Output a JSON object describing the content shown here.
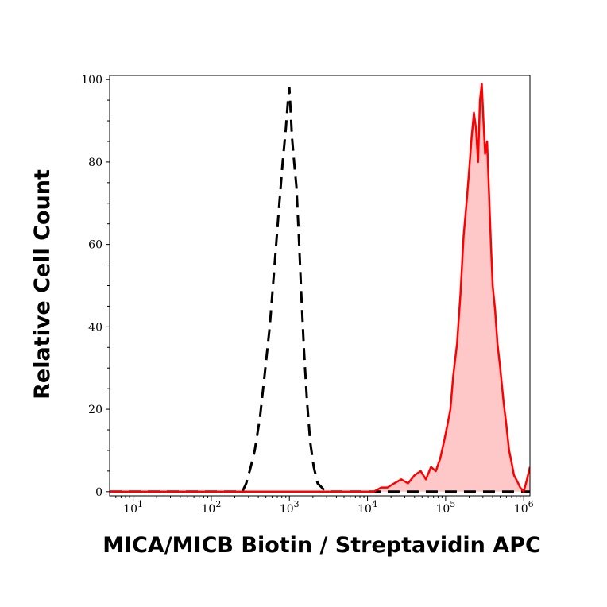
{
  "chart_data": {
    "type": "area",
    "title": "",
    "xlabel": "MICA/MICB Biotin / Streptavidin APC",
    "ylabel": "Relative Cell Count",
    "x_scale": "log",
    "xlim": [
      5,
      1200000
    ],
    "ylim": [
      -1,
      101
    ],
    "grid": false,
    "legend": "none",
    "y_ticks": [
      {
        "value": 0,
        "label": "0"
      },
      {
        "value": 20,
        "label": "20"
      },
      {
        "value": 40,
        "label": "40"
      },
      {
        "value": 60,
        "label": "60"
      },
      {
        "value": 80,
        "label": "80"
      },
      {
        "value": 100,
        "label": "100"
      }
    ],
    "x_ticks": [
      {
        "value": 10,
        "base": "10",
        "exp": "1"
      },
      {
        "value": 100,
        "base": "10",
        "exp": "2"
      },
      {
        "value": 1000,
        "base": "10",
        "exp": "3"
      },
      {
        "value": 10000,
        "base": "10",
        "exp": "4"
      },
      {
        "value": 100000,
        "base": "10",
        "exp": "5"
      },
      {
        "value": 1000000,
        "base": "10",
        "exp": "6"
      }
    ],
    "series": [
      {
        "style": "dashed",
        "color": "#000000",
        "fill": "none",
        "x": [
          5,
          250,
          280,
          320,
          360,
          420,
          480,
          560,
          640,
          730,
          820,
          900,
          960,
          1000,
          1040,
          1080,
          1150,
          1230,
          1320,
          1420,
          1540,
          1680,
          1850,
          2050,
          2300,
          2600,
          2900,
          3300,
          4000,
          1200000
        ],
        "y": [
          0,
          0,
          2,
          6,
          10,
          18,
          28,
          40,
          54,
          68,
          80,
          88,
          95,
          98,
          92,
          86,
          80,
          74,
          62,
          48,
          34,
          22,
          12,
          6,
          2,
          1,
          0,
          0,
          0,
          0
        ]
      },
      {
        "style": "solid",
        "color": "#ff0000",
        "fill": "#ffc8c8",
        "x": [
          5,
          10000,
          12000,
          15000,
          18000,
          22000,
          27000,
          33000,
          40000,
          48000,
          56000,
          65000,
          75000,
          85000,
          95000,
          105000,
          115000,
          125000,
          140000,
          155000,
          170000,
          185000,
          200000,
          215000,
          230000,
          245000,
          260000,
          275000,
          290000,
          305000,
          320000,
          340000,
          360000,
          380000,
          400000,
          430000,
          460000,
          500000,
          550000,
          600000,
          650000,
          700000,
          750000,
          800000,
          850000,
          900000,
          1000000,
          1100000,
          1200000
        ],
        "y": [
          0,
          0,
          0,
          1,
          1,
          2,
          3,
          2,
          4,
          5,
          3,
          6,
          5,
          8,
          12,
          16,
          20,
          28,
          36,
          48,
          62,
          70,
          78,
          86,
          92,
          88,
          80,
          95,
          99,
          90,
          82,
          85,
          72,
          60,
          50,
          44,
          36,
          30,
          22,
          16,
          10,
          7,
          4,
          3,
          2,
          1,
          0,
          3,
          6
        ]
      }
    ]
  }
}
